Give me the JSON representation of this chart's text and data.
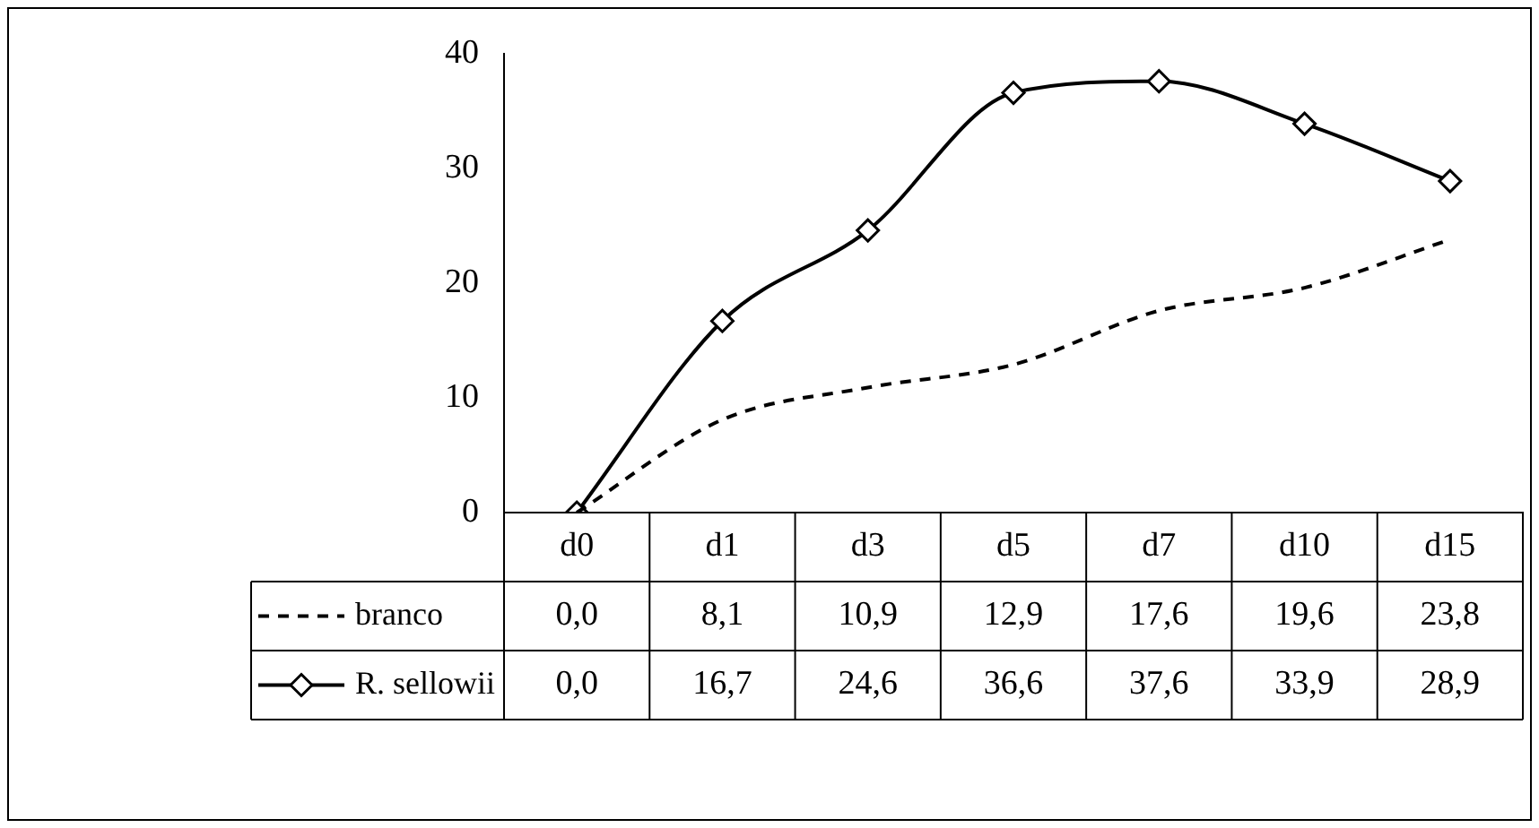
{
  "chart_data": {
    "type": "line",
    "categories": [
      "d0",
      "d1",
      "d3",
      "d5",
      "d7",
      "d10",
      "d15"
    ],
    "series": [
      {
        "name": "branco",
        "color": "#000000",
        "line_style": "dashed",
        "marker": "none",
        "values": [
          0.0,
          8.1,
          10.9,
          12.9,
          17.6,
          19.6,
          23.8
        ],
        "value_labels": [
          "0,0",
          "8,1",
          "10,9",
          "12,9",
          "17,6",
          "19,6",
          "23,8"
        ]
      },
      {
        "name": "R. sellowii",
        "color": "#000000",
        "line_style": "solid",
        "marker": "diamond",
        "values": [
          0.0,
          16.7,
          24.6,
          36.6,
          37.6,
          33.9,
          28.9
        ],
        "value_labels": [
          "0,0",
          "16,7",
          "24,6",
          "36,6",
          "37,6",
          "33,9",
          "28,9"
        ]
      }
    ],
    "ylim": [
      0,
      40
    ],
    "yticks": [
      0,
      10,
      20,
      30,
      40
    ],
    "grid": false,
    "legend": "bottom left"
  }
}
